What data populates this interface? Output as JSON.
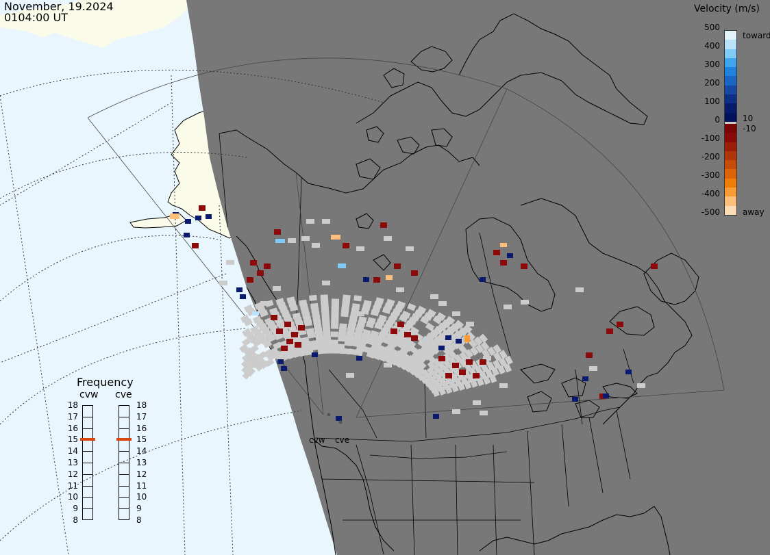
{
  "header": {
    "date": "November, 19.2024",
    "time": "0104:00 UT"
  },
  "velocity_legend": {
    "title": "Velocity (m/s)",
    "ticks": [
      "500",
      "400",
      "300",
      "200",
      "100",
      "0",
      "-100",
      "-200",
      "-300",
      "-400",
      "-500"
    ],
    "label_toward": "toward",
    "label_away": "away",
    "label_pos_threshold": "10",
    "label_neg_threshold": "-10",
    "colors_toward": [
      "#e2f3fc",
      "#b9e3fa",
      "#7fcaf6",
      "#3fa5ec",
      "#1f82dc",
      "#1966c2",
      "#1448a3",
      "#0e2f86",
      "#071b6b",
      "#00135c"
    ],
    "colors_away": [
      "#7a0505",
      "#8a0a08",
      "#9c1d08",
      "#b03508",
      "#c64b06",
      "#dc6406",
      "#ef7d06",
      "#f99c33",
      "#fbbe7b",
      "#fddcb6"
    ],
    "color_ground": "#cccccc"
  },
  "frequency_panel": {
    "title": "Frequency",
    "radars": [
      "cvw",
      "cve"
    ],
    "ticks": [
      "18",
      "17",
      "16",
      "15",
      "14",
      "13",
      "12",
      "11",
      "10",
      "9",
      "8"
    ],
    "cvw_mhz": 15,
    "cve_mhz": 15,
    "marker_color": "#d9460f"
  },
  "radar_sites": [
    {
      "code": "cvw",
      "label": "cvw"
    },
    {
      "code": "cve",
      "label": "cve"
    }
  ],
  "map_colors": {
    "ocean": "#e9f6fe",
    "night": "#787878",
    "land_day": "#fbfbea",
    "coastline": "#000000",
    "grid": "#333333"
  }
}
